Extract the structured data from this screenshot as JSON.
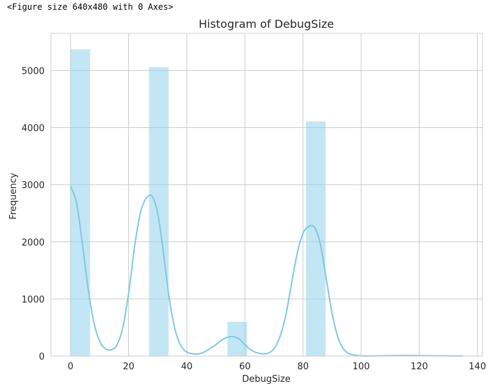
{
  "output_text": "<Figure size 640x480 with 0 Axes>",
  "colors": {
    "bar": "#87ceeb",
    "kde": "#7ec8e3",
    "grid": "#cccccc",
    "spine": "#cccccc"
  },
  "chart_data": {
    "type": "bar",
    "title": "Histogram of DebugSize",
    "xlabel": "DebugSize",
    "ylabel": "Frequency",
    "xlim": [
      -6.75,
      141.75
    ],
    "ylim": [
      0,
      5650
    ],
    "xticks": [
      0,
      20,
      40,
      60,
      80,
      100,
      120,
      140
    ],
    "yticks": [
      0,
      1000,
      2000,
      3000,
      4000,
      5000
    ],
    "grid": true,
    "bins": [
      {
        "x0": 0,
        "x1": 6.75,
        "count": 5370
      },
      {
        "x0": 27,
        "x1": 33.75,
        "count": 5060
      },
      {
        "x0": 54,
        "x1": 60.75,
        "count": 600
      },
      {
        "x0": 81,
        "x1": 87.75,
        "count": 4110
      },
      {
        "x0": 108,
        "x1": 114.75,
        "count": 8
      },
      {
        "x0": 128.25,
        "x1": 135,
        "count": 5
      }
    ],
    "kde": {
      "x": [
        0,
        2,
        4,
        6,
        8,
        10,
        12,
        14,
        16,
        18,
        20,
        22,
        24,
        26,
        28,
        30,
        32,
        34,
        36,
        38,
        40,
        42,
        44,
        46,
        48,
        50,
        52,
        54,
        56,
        58,
        60,
        62,
        64,
        66,
        68,
        70,
        72,
        74,
        76,
        78,
        80,
        82,
        84,
        86,
        88,
        90,
        92,
        94,
        96,
        98,
        100,
        105,
        110,
        115,
        120,
        125,
        130,
        135
      ],
      "y": [
        2970,
        2700,
        2000,
        1200,
        600,
        260,
        130,
        110,
        200,
        500,
        1100,
        1900,
        2500,
        2760,
        2800,
        2500,
        1800,
        1000,
        460,
        180,
        70,
        40,
        40,
        70,
        130,
        200,
        280,
        330,
        340,
        300,
        200,
        110,
        60,
        40,
        50,
        130,
        330,
        700,
        1250,
        1800,
        2150,
        2270,
        2250,
        1950,
        1350,
        750,
        330,
        120,
        40,
        15,
        5,
        4,
        8,
        10,
        7,
        5,
        4,
        3
      ]
    }
  }
}
